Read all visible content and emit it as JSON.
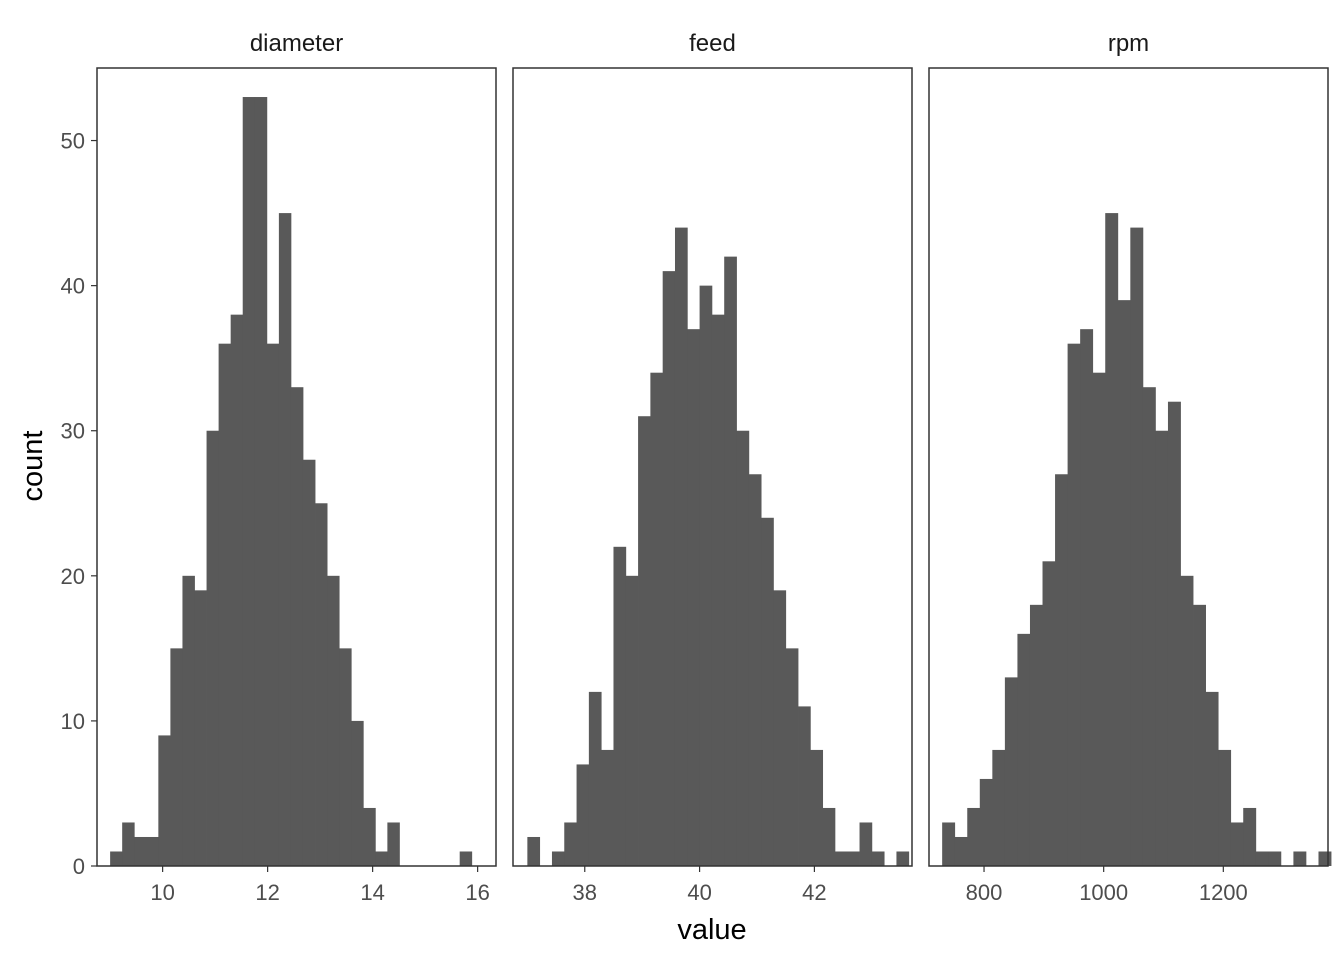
{
  "chart_data": {
    "type": "bar",
    "kind": "faceted-histogram",
    "xlabel": "value",
    "ylabel": "count",
    "ylim": [
      0,
      55
    ],
    "y_ticks": [
      0,
      10,
      20,
      30,
      40,
      50
    ],
    "bar_color": "#595959",
    "panel_border_color": "#333333",
    "grid": false,
    "facets": [
      {
        "name": "diameter",
        "xlim": [
          8.75,
          16.35
        ],
        "x_ticks": [
          10,
          12,
          14,
          16
        ],
        "bin_start": 9.0,
        "bin_width": 0.2296,
        "counts": [
          1,
          3,
          2,
          2,
          9,
          15,
          20,
          19,
          30,
          36,
          38,
          53,
          53,
          36,
          45,
          33,
          28,
          25,
          20,
          15,
          10,
          4,
          1,
          3,
          0,
          0,
          0,
          0,
          0,
          1
        ]
      },
      {
        "name": "feed",
        "xlim": [
          36.75,
          43.7
        ],
        "x_ticks": [
          38,
          40,
          42
        ],
        "bin_start": 37.0,
        "bin_width": 0.2143,
        "counts": [
          2,
          0,
          1,
          3,
          7,
          12,
          8,
          22,
          20,
          31,
          34,
          41,
          44,
          37,
          40,
          38,
          42,
          30,
          27,
          24,
          19,
          15,
          11,
          8,
          4,
          1,
          1,
          3,
          1,
          0,
          1
        ]
      },
      {
        "name": "rpm",
        "xlim": [
          708,
          1375
        ],
        "x_ticks": [
          800,
          1000,
          1200
        ],
        "bin_start": 730,
        "bin_width": 20.97,
        "counts": [
          3,
          2,
          4,
          6,
          8,
          13,
          16,
          18,
          21,
          27,
          36,
          37,
          34,
          45,
          39,
          44,
          33,
          30,
          32,
          20,
          18,
          12,
          8,
          3,
          4,
          1,
          1,
          0,
          1,
          0,
          1
        ]
      }
    ]
  }
}
